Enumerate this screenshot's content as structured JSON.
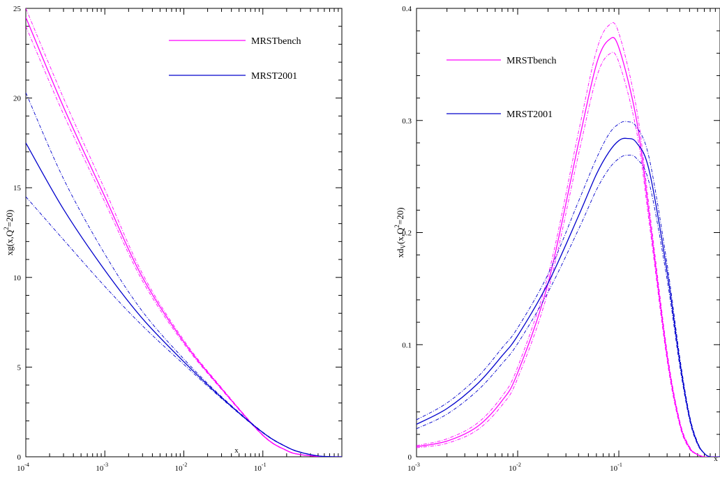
{
  "chart_data": [
    {
      "type": "line",
      "xscale": "log",
      "xlim": [
        0.0001,
        1
      ],
      "ylim": [
        0,
        25
      ],
      "xlabel": "x",
      "ylabel": {
        "base": "xg(x,Q",
        "sup": "2",
        "rest": "=20)"
      },
      "y_ticks": [
        0,
        5,
        10,
        15,
        20,
        25
      ],
      "x_ticks": [
        {
          "value": 0.0001,
          "base": "10",
          "exp": "-4"
        },
        {
          "value": 0.001,
          "base": "10",
          "exp": "-3"
        },
        {
          "value": 0.01,
          "base": "10",
          "exp": "-2"
        },
        {
          "value": 0.1,
          "base": "10",
          "exp": "-1"
        }
      ],
      "legend": [
        {
          "label": "MRSTbench",
          "color": "#ff00ff"
        },
        {
          "label": "MRST2001",
          "color": "#0000cc"
        }
      ],
      "series": [
        {
          "name": "MRSTbench",
          "style": "solid",
          "color": "#ff00ff",
          "x": [
            0.0001,
            0.0003,
            0.001,
            0.003,
            0.01,
            0.03,
            0.1,
            0.2,
            0.3,
            0.5,
            0.7,
            1.0
          ],
          "y": [
            24.5,
            19.5,
            14.5,
            10.0,
            6.4,
            3.8,
            1.2,
            0.35,
            0.12,
            0.02,
            0.0,
            0.0
          ]
        },
        {
          "style": "dashdot",
          "color": "#ff00ff",
          "x": [
            0.0001,
            0.0003,
            0.001,
            0.003,
            0.01,
            0.03,
            0.1,
            0.2,
            0.3,
            0.5,
            0.7,
            1.0
          ],
          "y": [
            25.0,
            20.0,
            14.9,
            10.2,
            6.5,
            3.85,
            1.22,
            0.36,
            0.13,
            0.02,
            0.0,
            0.0
          ]
        },
        {
          "style": "dashdot",
          "color": "#ff00ff",
          "x": [
            0.0001,
            0.0003,
            0.001,
            0.003,
            0.01,
            0.03,
            0.1,
            0.2,
            0.3,
            0.5,
            0.7,
            1.0
          ],
          "y": [
            24.0,
            19.1,
            14.2,
            9.8,
            6.3,
            3.75,
            1.18,
            0.34,
            0.12,
            0.02,
            0.0,
            0.0
          ]
        },
        {
          "name": "MRST2001",
          "style": "solid",
          "color": "#0000cc",
          "x": [
            0.0001,
            0.0003,
            0.001,
            0.003,
            0.01,
            0.03,
            0.1,
            0.2,
            0.3,
            0.5,
            0.7,
            1.0
          ],
          "y": [
            17.5,
            13.8,
            10.4,
            7.7,
            5.3,
            3.3,
            1.35,
            0.55,
            0.25,
            0.05,
            0.01,
            0.0
          ]
        },
        {
          "style": "dashdot",
          "color": "#0000cc",
          "x": [
            0.0001,
            0.0003,
            0.001,
            0.003,
            0.01,
            0.03,
            0.1,
            0.2,
            0.3,
            0.5,
            0.7,
            1.0
          ],
          "y": [
            20.3,
            15.5,
            11.3,
            8.1,
            5.45,
            3.35,
            1.37,
            0.56,
            0.26,
            0.05,
            0.01,
            0.0
          ]
        },
        {
          "style": "dashdot",
          "color": "#0000cc",
          "x": [
            0.0001,
            0.0003,
            0.001,
            0.003,
            0.01,
            0.03,
            0.1,
            0.2,
            0.3,
            0.5,
            0.7,
            1.0
          ],
          "y": [
            14.5,
            12.1,
            9.5,
            7.3,
            5.15,
            3.25,
            1.33,
            0.54,
            0.24,
            0.05,
            0.01,
            0.0
          ]
        }
      ]
    },
    {
      "type": "line",
      "xscale": "log",
      "xlim": [
        0.001,
        1
      ],
      "ylim": [
        0,
        0.4
      ],
      "xlabel": "x",
      "ylabel": {
        "base": "xd",
        "sub": "V",
        "rest": "(x,Q",
        "sup": "2",
        "rest2": "=20)"
      },
      "y_ticks": [
        0,
        0.1,
        0.2,
        0.3,
        0.4
      ],
      "y_tick_labels": [
        "0",
        "0.1",
        "0.2",
        "0.3",
        "0.4"
      ],
      "x_ticks": [
        {
          "value": 0.001,
          "base": "10",
          "exp": "-3"
        },
        {
          "value": 0.01,
          "base": "10",
          "exp": "-2"
        },
        {
          "value": 0.1,
          "base": "10",
          "exp": "-1"
        }
      ],
      "legend": [
        {
          "label": "MRSTbench",
          "color": "#ff00ff"
        },
        {
          "label": "MRST2001",
          "color": "#0000cc"
        }
      ],
      "series": [
        {
          "name": "MRSTbench",
          "style": "solid",
          "color": "#ff00ff",
          "x": [
            0.001,
            0.002,
            0.004,
            0.007,
            0.01,
            0.02,
            0.04,
            0.06,
            0.08,
            0.1,
            0.15,
            0.2,
            0.3,
            0.4,
            0.5,
            0.6,
            0.7,
            0.8,
            1.0
          ],
          "y": [
            0.009,
            0.014,
            0.027,
            0.05,
            0.075,
            0.155,
            0.28,
            0.35,
            0.372,
            0.365,
            0.3,
            0.215,
            0.09,
            0.03,
            0.008,
            0.002,
            0.0,
            0.0,
            0.0
          ]
        },
        {
          "style": "dashdot",
          "color": "#ff00ff",
          "x": [
            0.001,
            0.002,
            0.004,
            0.007,
            0.01,
            0.02,
            0.04,
            0.06,
            0.08,
            0.1,
            0.15,
            0.2,
            0.3,
            0.4,
            0.5,
            0.6,
            0.7,
            0.8,
            1.0
          ],
          "y": [
            0.01,
            0.016,
            0.03,
            0.054,
            0.08,
            0.162,
            0.29,
            0.362,
            0.385,
            0.378,
            0.31,
            0.222,
            0.094,
            0.032,
            0.009,
            0.002,
            0.0,
            0.0,
            0.0
          ]
        },
        {
          "style": "dashdot",
          "color": "#ff00ff",
          "x": [
            0.001,
            0.002,
            0.004,
            0.007,
            0.01,
            0.02,
            0.04,
            0.06,
            0.08,
            0.1,
            0.15,
            0.2,
            0.3,
            0.4,
            0.5,
            0.6,
            0.7,
            0.8,
            1.0
          ],
          "y": [
            0.008,
            0.012,
            0.024,
            0.046,
            0.07,
            0.148,
            0.27,
            0.338,
            0.359,
            0.352,
            0.29,
            0.208,
            0.086,
            0.028,
            0.007,
            0.002,
            0.0,
            0.0,
            0.0
          ]
        },
        {
          "name": "MRST2001",
          "style": "solid",
          "color": "#0000cc",
          "x": [
            0.001,
            0.002,
            0.004,
            0.007,
            0.01,
            0.02,
            0.04,
            0.06,
            0.08,
            0.1,
            0.12,
            0.15,
            0.2,
            0.3,
            0.4,
            0.5,
            0.6,
            0.7,
            0.8,
            1.0
          ],
          "y": [
            0.029,
            0.043,
            0.065,
            0.09,
            0.108,
            0.155,
            0.215,
            0.252,
            0.272,
            0.282,
            0.284,
            0.28,
            0.255,
            0.165,
            0.085,
            0.035,
            0.012,
            0.003,
            0.0,
            0.0
          ]
        },
        {
          "style": "dashdot",
          "color": "#0000cc",
          "x": [
            0.001,
            0.002,
            0.004,
            0.007,
            0.01,
            0.02,
            0.04,
            0.06,
            0.08,
            0.1,
            0.12,
            0.15,
            0.2,
            0.3,
            0.4,
            0.5,
            0.6,
            0.7,
            0.8,
            1.0
          ],
          "y": [
            0.033,
            0.048,
            0.071,
            0.097,
            0.115,
            0.163,
            0.228,
            0.266,
            0.288,
            0.297,
            0.299,
            0.294,
            0.266,
            0.172,
            0.089,
            0.037,
            0.013,
            0.003,
            0.0,
            0.0
          ]
        },
        {
          "style": "dashdot",
          "color": "#0000cc",
          "x": [
            0.001,
            0.002,
            0.004,
            0.007,
            0.01,
            0.02,
            0.04,
            0.06,
            0.08,
            0.1,
            0.12,
            0.15,
            0.2,
            0.3,
            0.4,
            0.5,
            0.6,
            0.7,
            0.8,
            1.0
          ],
          "y": [
            0.025,
            0.038,
            0.059,
            0.083,
            0.101,
            0.147,
            0.203,
            0.238,
            0.257,
            0.266,
            0.269,
            0.266,
            0.244,
            0.158,
            0.081,
            0.033,
            0.011,
            0.003,
            0.0,
            0.0
          ]
        }
      ]
    }
  ]
}
